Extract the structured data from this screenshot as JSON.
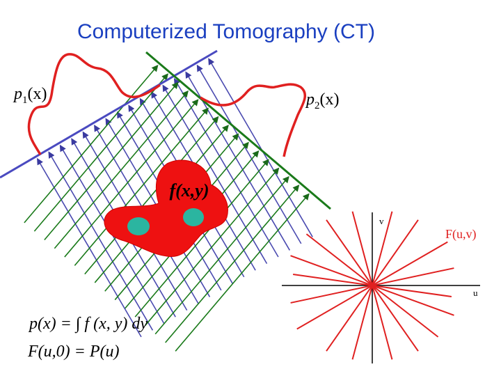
{
  "title": "Computerized Tomography (CT)",
  "projections": [
    {
      "base": "p",
      "sub": "1",
      "arg": "(x)"
    },
    {
      "base": "p",
      "sub": "2",
      "arg": "(x)"
    }
  ],
  "object_label": "f(x,y)",
  "fourier": {
    "v_axis": "v",
    "u_axis": "u",
    "label": "F(u,v)"
  },
  "equations": [
    "p(x) = ∫ f (x, y) dy",
    "F(u,0) = P(u)"
  ]
}
